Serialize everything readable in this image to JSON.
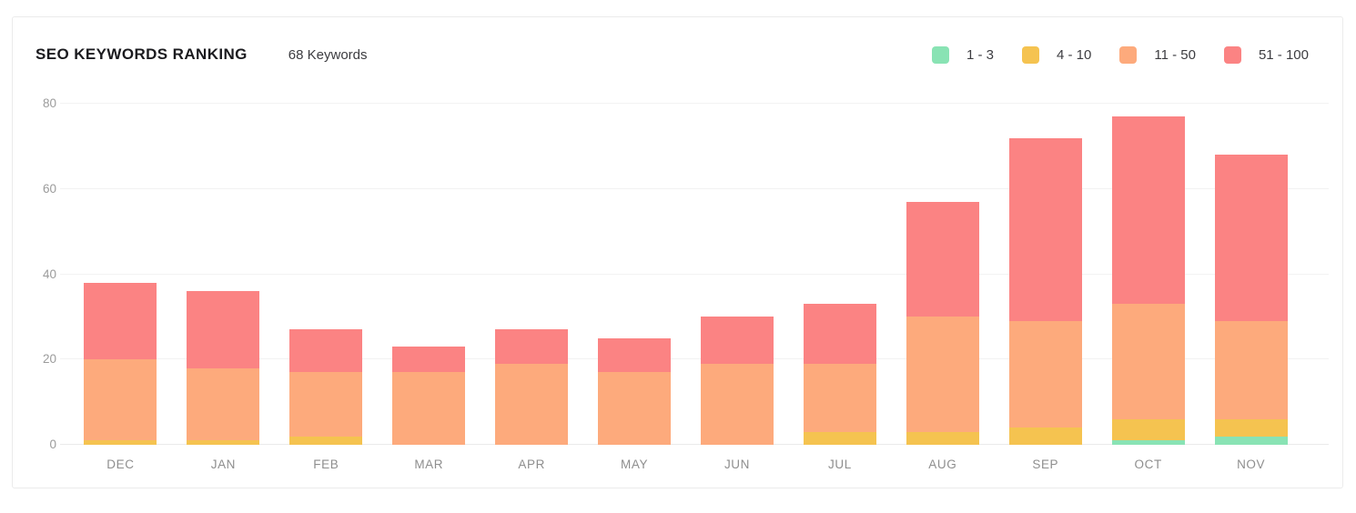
{
  "header": {
    "title": "SEO KEYWORDS RANKING",
    "subtitle": "68 Keywords"
  },
  "chart_data": {
    "type": "bar",
    "stacked": true,
    "title": "SEO KEYWORDS RANKING",
    "subtitle": "68 Keywords",
    "categories": [
      "DEC",
      "JAN",
      "FEB",
      "MAR",
      "APR",
      "MAY",
      "JUN",
      "JUL",
      "AUG",
      "SEP",
      "OCT",
      "NOV"
    ],
    "series": [
      {
        "name": "1 - 3",
        "color": "#89e3b4",
        "values": [
          0,
          0,
          0,
          0,
          0,
          0,
          0,
          0,
          0,
          0,
          1,
          2
        ]
      },
      {
        "name": "4 - 10",
        "color": "#f5c350",
        "values": [
          1,
          1,
          2,
          0,
          0,
          0,
          0,
          3,
          3,
          4,
          5,
          4
        ]
      },
      {
        "name": "11 - 50",
        "color": "#fdaa7c",
        "values": [
          19,
          17,
          15,
          17,
          19,
          17,
          19,
          16,
          27,
          25,
          27,
          23
        ]
      },
      {
        "name": "51 - 100",
        "color": "#fb8383",
        "values": [
          18,
          18,
          10,
          6,
          8,
          8,
          11,
          14,
          27,
          43,
          44,
          39
        ]
      }
    ],
    "totals": [
      38,
      36,
      27,
      23,
      27,
      25,
      30,
      33,
      57,
      72,
      77,
      68
    ],
    "xlabel": "",
    "ylabel": "",
    "ylim": [
      0,
      80
    ],
    "ytick_step": 20,
    "yticks": [
      0,
      20,
      40,
      60,
      80
    ],
    "grid": true,
    "legend_position": "top-right"
  }
}
